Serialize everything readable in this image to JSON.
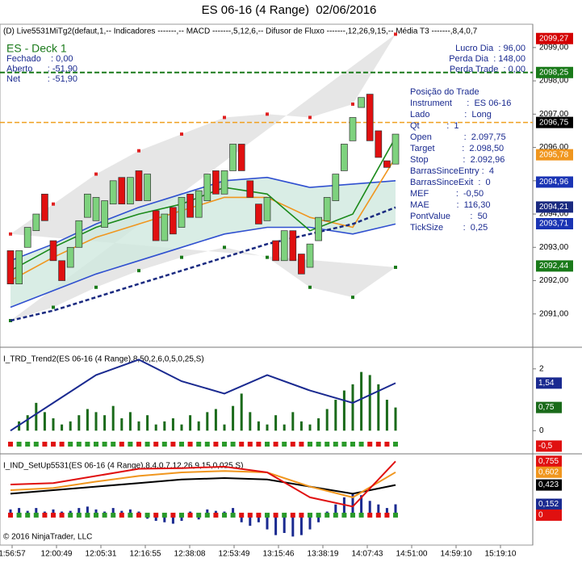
{
  "chart_data": {
    "type": "candlestick",
    "title": "ES 06-16 (4 Range)  02/06/2016",
    "header": "(D) Live5531MiTg2(defaut,1,-- Indicadores -------,-- MACD -------,5,12,6,-- Difusor de Fluxo -------,12,26,9,15,-- Média T3 -------,8,4,0,7",
    "deck_title": "ES - Deck 1",
    "info_left": [
      "Fechado    : 0,00",
      "Aberto      : -51,90",
      "Net           : -51,90"
    ],
    "info_right": [
      "Lucro Dia  : 96,00",
      "Perda Dia  : 148,00",
      "Perda Trade  : 0,00"
    ],
    "position": [
      "Posição do Trade",
      "Instrument      :  ES 06-16",
      "Lado              :  Long",
      "Qt           :  1",
      "Open             :  2.097,75",
      "Target           :  2.098,50",
      "Stop              :  2.092,96",
      "BarrasSinceEntry :  4",
      "BarrasSinceExit  :  0",
      "MEF           :  -0,50",
      "MAE           :  116,30",
      "PontValue        :  50",
      "TickSize        :  0,25"
    ],
    "ylim": [
      2090.0,
      2099.7
    ],
    "yticks": [
      {
        "value": 2091,
        "label": "2091,00"
      },
      {
        "value": 2092,
        "label": "2092,00"
      },
      {
        "value": 2093,
        "label": "2093,00"
      },
      {
        "value": 2094,
        "label": "2094,00"
      },
      {
        "value": 2095,
        "label": "2095,00"
      },
      {
        "value": 2096,
        "label": "2096,00"
      },
      {
        "value": 2097,
        "label": "2097,00"
      },
      {
        "value": 2098,
        "label": "2098,00"
      },
      {
        "value": 2099,
        "label": "2099,00"
      }
    ],
    "price_markers": [
      {
        "value": 2099.27,
        "label": "2099,27",
        "color": "#d40000"
      },
      {
        "value": 2098.25,
        "label": "2098,25",
        "color": "#1a7a1a"
      },
      {
        "value": 2096.75,
        "label": "2096,75",
        "color": "#000000"
      },
      {
        "value": 2095.78,
        "label": "2095,78",
        "color": "#f0961e"
      },
      {
        "value": 2094.96,
        "label": "2094,96",
        "color": "#1a34b4"
      },
      {
        "value": 2094.21,
        "label": "2094,21",
        "color": "#1a2a80"
      },
      {
        "value": 2093.71,
        "label": "2093,71",
        "color": "#1a34b4"
      },
      {
        "value": 2092.44,
        "label": "2092,44",
        "color": "#1a7a1a"
      }
    ],
    "candles": [
      [
        2092.9,
        2091.9
      ],
      [
        2091.9,
        2092.9
      ],
      [
        2093.0,
        2093.6
      ],
      [
        2093.5,
        2094.0
      ],
      [
        2094.6,
        2093.8
      ],
      [
        2093.2,
        2092.6
      ],
      [
        2092.6,
        2092.0
      ],
      [
        2092.4,
        2093.0
      ],
      [
        2093.0,
        2093.8
      ],
      [
        2093.9,
        2094.6
      ],
      [
        2093.8,
        2094.5
      ],
      [
        2093.6,
        2094.4
      ],
      [
        2094.3,
        2095.0
      ],
      [
        2095.1,
        2094.3
      ],
      [
        2094.3,
        2095.1
      ],
      [
        2095.3,
        2094.4
      ],
      [
        2094.4,
        2095.2
      ],
      [
        2094.1,
        2093.2
      ],
      [
        2093.2,
        2094.0
      ],
      [
        2094.2,
        2093.4
      ],
      [
        2093.6,
        2094.5
      ],
      [
        2094.6,
        2093.9
      ],
      [
        2093.9,
        2094.7
      ],
      [
        2094.4,
        2095.2
      ],
      [
        2095.3,
        2094.6
      ],
      [
        2094.6,
        2095.3
      ],
      [
        2095.3,
        2096.1
      ],
      [
        2096.1,
        2095.3
      ],
      [
        2095.0,
        2094.5
      ],
      [
        2094.3,
        2093.7
      ],
      [
        2093.8,
        2094.5
      ],
      [
        2093.2,
        2092.6
      ],
      [
        2092.6,
        2093.5
      ],
      [
        2093.5,
        2092.6
      ],
      [
        2092.8,
        2092.2
      ],
      [
        2092.4,
        2093.1
      ],
      [
        2093.2,
        2093.9
      ],
      [
        2093.8,
        2094.5
      ],
      [
        2094.4,
        2095.2
      ],
      [
        2095.3,
        2096.1
      ],
      [
        2096.2,
        2096.9
      ],
      [
        2097.2,
        2097.5
      ],
      [
        2097.6,
        2096.2
      ],
      [
        2096.5,
        2095.7
      ],
      [
        2095.6,
        2095.4
      ],
      [
        2095.5,
        2096.4
      ]
    ],
    "up_color": "#7ed27e",
    "down_color": "#e01010",
    "series": [
      {
        "color": "#e02020",
        "style": "dots",
        "values": [
          2093.4,
          2094.3,
          2095.2,
          2095.9,
          2096.4,
          2096.9,
          2097.0,
          2096.9,
          2097.3,
          2099.4
        ]
      },
      {
        "color": "#1a7a1a",
        "style": "dots",
        "values": [
          2090.8,
          2091.2,
          2091.8,
          2092.3,
          2092.7,
          2093.0,
          2092.7,
          2091.8,
          2091.5,
          2092.4
        ]
      },
      {
        "color": "#3050d0",
        "style": "line",
        "values": [
          2092.6,
          2093.1,
          2093.7,
          2094.2,
          2094.6,
          2095.0,
          2095.1,
          2094.8,
          2094.9,
          2095.0
        ]
      },
      {
        "color": "#3050d0",
        "style": "line",
        "values": [
          2091.2,
          2091.7,
          2092.2,
          2092.6,
          2093.0,
          2093.4,
          2093.6,
          2093.6,
          2093.4,
          2093.7
        ]
      },
      {
        "color": "#f0961e",
        "style": "line",
        "values": [
          2092.0,
          2092.7,
          2093.3,
          2093.7,
          2094.1,
          2094.5,
          2094.5,
          2093.9,
          2093.6,
          2095.7
        ]
      },
      {
        "color": "#1a8a1a",
        "style": "line",
        "values": [
          2092.3,
          2093.0,
          2093.6,
          2094.0,
          2094.3,
          2094.8,
          2094.6,
          2093.5,
          2094.0,
          2096.3
        ]
      },
      {
        "color": "#1a2a80",
        "style": "dash",
        "values": [
          2090.8,
          2091.1,
          2091.5,
          2091.9,
          2092.3,
          2092.7,
          2093.1,
          2093.4,
          2093.7,
          2094.2
        ]
      }
    ],
    "panels": [
      {
        "title": "I_TRD_Trend2(ES 06-16 (4 Range),8,50,2,6,0,5,0,25,S)",
        "ylim": [
          -0.75,
          2.7
        ],
        "yticks": [
          0,
          2
        ],
        "bar_color": "#1a6a1a",
        "bars": [
          0,
          0.3,
          0.5,
          0.9,
          0.6,
          0.4,
          0.2,
          0.3,
          0.5,
          0.7,
          0.6,
          0.5,
          0.8,
          0.4,
          0.6,
          0.3,
          0.5,
          0.2,
          0.3,
          0.4,
          0.2,
          0.5,
          0.3,
          0.6,
          0.7,
          0.2,
          0.8,
          1.2,
          0.6,
          0.3,
          0.2,
          0.5,
          0.2,
          0.6,
          0.3,
          0.2,
          0.4,
          0.7,
          1.0,
          1.3,
          1.5,
          1.9,
          1.8,
          1.5,
          1.0,
          0.75
        ],
        "series": [
          {
            "color": "#1a2a90",
            "values": [
              0.0,
              0.9,
              1.8,
              2.3,
              1.6,
              1.2,
              1.8,
              1.3,
              0.9,
              1.54
            ]
          }
        ],
        "markers": [
          {
            "value": 1.54,
            "label": "1,54",
            "color": "#1a2a90"
          },
          {
            "value": 0.75,
            "label": "0,75",
            "color": "#1a6a1a"
          },
          {
            "value": -0.5,
            "label": "-0,5",
            "color": "#e01010"
          }
        ]
      },
      {
        "title": "I_IND_SetUp5531(ES 06-16 (4 Range),8,4,0,7,12,26,9,15,0,025,S)",
        "ylim": [
          -0.42,
          0.86
        ],
        "yticks": [],
        "bar_color": "#1a2a90",
        "bars": [
          0.08,
          0.1,
          0.06,
          0.1,
          0.05,
          0.08,
          0.05,
          0.06,
          0.1,
          0.12,
          0.08,
          0.05,
          0.1,
          0.06,
          0.08,
          0.05,
          -0.05,
          -0.08,
          -0.1,
          -0.12,
          -0.08,
          0.05,
          -0.06,
          0.08,
          0.06,
          0.05,
          0.1,
          -0.1,
          -0.15,
          -0.1,
          -0.2,
          -0.28,
          -0.25,
          -0.3,
          -0.28,
          -0.2,
          -0.1,
          0.05,
          0.15,
          0.25,
          0.3,
          0.28,
          0.2,
          0.15,
          0.1,
          0.152
        ],
        "series": [
          {
            "color": "#000000",
            "values": [
              0.3,
              0.35,
              0.4,
              0.45,
              0.5,
              0.52,
              0.5,
              0.4,
              0.3,
              0.423
            ]
          },
          {
            "color": "#f0961e",
            "values": [
              0.35,
              0.38,
              0.47,
              0.55,
              0.6,
              0.62,
              0.6,
              0.4,
              0.25,
              0.602
            ]
          },
          {
            "color": "#e01010",
            "values": [
              0.43,
              0.45,
              0.55,
              0.65,
              0.66,
              0.68,
              0.6,
              0.25,
              0.12,
              0.755
            ]
          }
        ],
        "markers": [
          {
            "value": 0.755,
            "label": "0,755",
            "color": "#e01010"
          },
          {
            "value": 0.602,
            "label": "0,602",
            "color": "#f0961e"
          },
          {
            "value": 0.423,
            "label": "0,423",
            "color": "#000000"
          },
          {
            "value": 0.152,
            "label": "0,152",
            "color": "#1a2a90"
          },
          {
            "value": 0,
            "label": "0",
            "color": "#e01010"
          }
        ]
      }
    ],
    "x_labels": [
      "1:56:57",
      "12:00:49",
      "12:05:31",
      "12:16:55",
      "12:38:08",
      "12:53:49",
      "13:15:46",
      "13:38:19",
      "14:07:43",
      "14:51:00",
      "14:59:10",
      "15:19:10"
    ],
    "copyright": "© 2016 NinjaTrader, LLC"
  }
}
